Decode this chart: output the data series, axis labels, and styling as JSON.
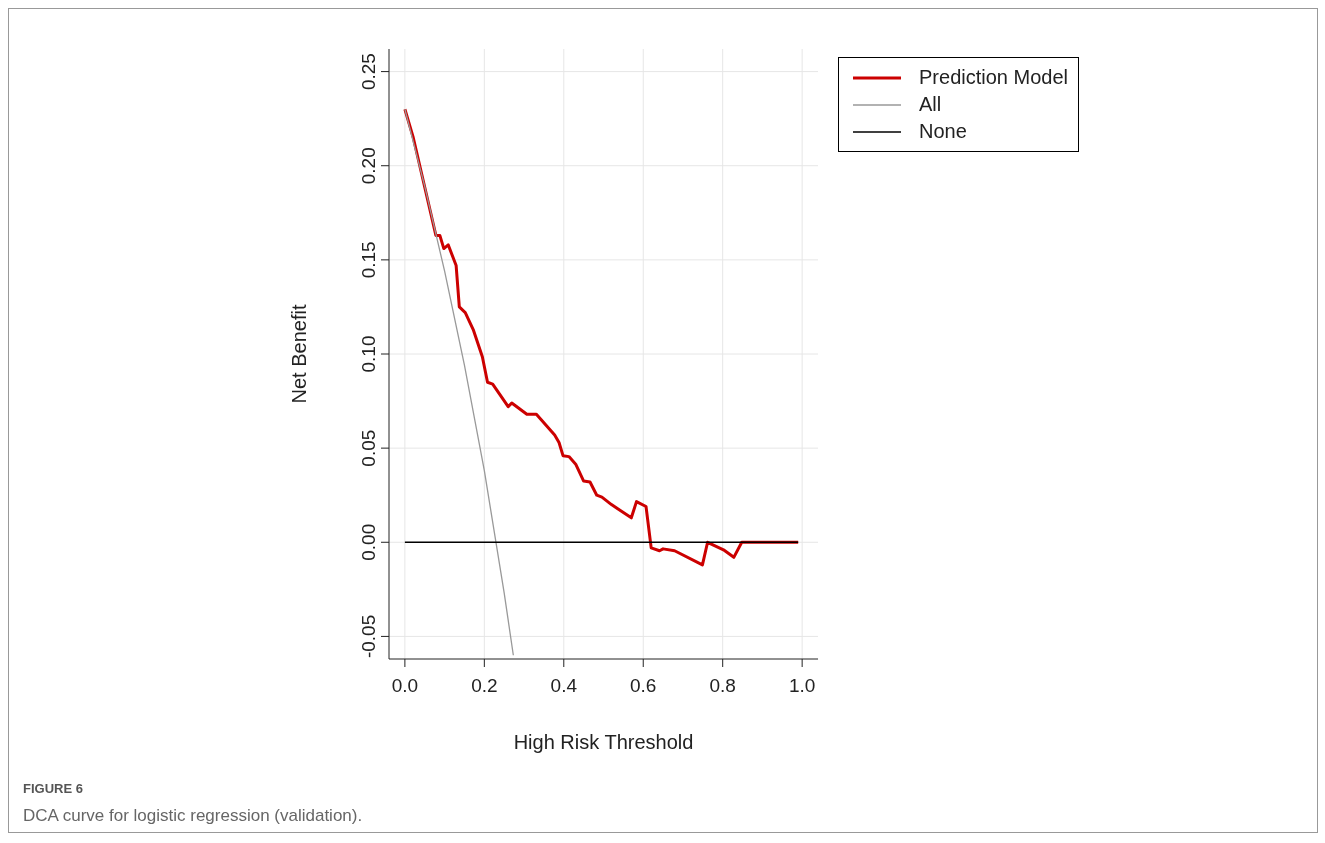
{
  "chart_data": {
    "type": "line",
    "xlabel": "High Risk Threshold",
    "ylabel": "Net Benefit",
    "annotations": [
      "FIGURE 6",
      "DCA curve for logistic regression (validation)."
    ],
    "xlim": [
      -0.04,
      1.04
    ],
    "ylim": [
      -0.062,
      0.262
    ],
    "xticks": [
      {
        "value": 0,
        "label": "0.0"
      },
      {
        "value": 0.2,
        "label": "0.2"
      },
      {
        "value": 0.4,
        "label": "0.4"
      },
      {
        "value": 0.6,
        "label": "0.6"
      },
      {
        "value": 0.8,
        "label": "0.8"
      },
      {
        "value": 1,
        "label": "1.0"
      }
    ],
    "yticks": [
      {
        "value": -0.05,
        "label": "-0.05"
      },
      {
        "value": 0,
        "label": "0.00"
      },
      {
        "value": 0.05,
        "label": "0.05"
      },
      {
        "value": 0.1,
        "label": "0.10"
      },
      {
        "value": 0.15,
        "label": "0.15"
      },
      {
        "value": 0.2,
        "label": "0.20"
      },
      {
        "value": 0.25,
        "label": "0.25"
      }
    ],
    "grid": true,
    "legend": "top right",
    "marker": "none",
    "line_style": "solid",
    "series": [
      {
        "name": "Prediction Model",
        "color": "#cc0000",
        "x": [
          0,
          0.021,
          0.078,
          0.088,
          0.098,
          0.109,
          0.129,
          0.137,
          0.152,
          0.172,
          0.195,
          0.208,
          0.221,
          0.26,
          0.269,
          0.307,
          0.331,
          0.377,
          0.388,
          0.398,
          0.413,
          0.43,
          0.45,
          0.466,
          0.483,
          0.496,
          0.52,
          0.57,
          0.583,
          0.607,
          0.62,
          0.641,
          0.65,
          0.679,
          0.749,
          0.762,
          0.802,
          0.828,
          0.848,
          0.99
        ],
        "values": [
          0.23,
          0.215,
          0.163,
          0.163,
          0.156,
          0.158,
          0.147,
          0.125,
          0.122,
          0.113,
          0.0985,
          0.085,
          0.084,
          0.072,
          0.074,
          0.068,
          0.068,
          0.057,
          0.053,
          0.046,
          0.0455,
          0.0415,
          0.0325,
          0.032,
          0.025,
          0.024,
          0.02,
          0.013,
          0.0216,
          0.019,
          -0.003,
          -0.0045,
          -0.0035,
          -0.0045,
          -0.012,
          0,
          -0.004,
          -0.008,
          0,
          0
        ]
      },
      {
        "name": "All",
        "color": "#999999",
        "x": [
          0,
          0.05,
          0.1,
          0.15,
          0.2,
          0.25,
          0.273
        ],
        "values": [
          0.23,
          0.189,
          0.144,
          0.094,
          0.038,
          -0.027,
          -0.06
        ]
      },
      {
        "name": "None",
        "color": "#000000",
        "x": [
          0,
          0.99
        ],
        "values": [
          0,
          0
        ]
      }
    ]
  }
}
